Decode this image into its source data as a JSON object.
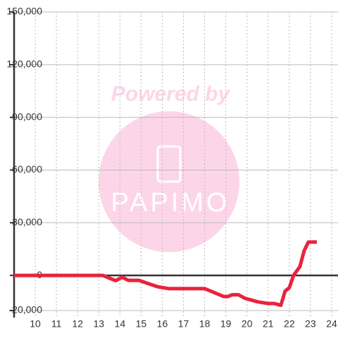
{
  "chart_data": {
    "type": "line",
    "watermark": {
      "line1": "Powered by",
      "line2": "PAPIMO"
    },
    "x": [
      9,
      13.2,
      13.5,
      13.8,
      14.1,
      14.4,
      14.9,
      15.3,
      15.8,
      16.3,
      17,
      18,
      18.4,
      18.9,
      19.1,
      19.3,
      19.6,
      19.9,
      20.5,
      21,
      21.3,
      21.6,
      21.8,
      22,
      22.2,
      22.5,
      22.7,
      22.9,
      23.3
    ],
    "series": [
      {
        "color": "#e8233f",
        "values": [
          0,
          0,
          -1500,
          -3000,
          -1000,
          -2800,
          -2800,
          -4500,
          -6500,
          -7500,
          -7500,
          -7500,
          -9500,
          -12000,
          -12000,
          -11000,
          -11000,
          -13000,
          -15000,
          -16000,
          -16000,
          -17000,
          -9000,
          -7000,
          0,
          5000,
          14000,
          19000,
          19000
        ]
      }
    ],
    "xlim": [
      9,
      24.3
    ],
    "xticks": [
      10,
      11,
      12,
      13,
      14,
      15,
      16,
      17,
      18,
      19,
      20,
      21,
      22,
      23,
      24
    ],
    "ylim": [
      -24000,
      150000
    ],
    "yticks": [
      {
        "value": -20000,
        "label": "-20,000"
      },
      0,
      {
        "value": 30000,
        "label": "30,000"
      },
      {
        "value": 60000,
        "label": "60,000"
      },
      {
        "value": 90000,
        "label": "90,000"
      },
      {
        "value": 120000,
        "label": "120,000"
      },
      {
        "value": 150000,
        "label": "150,000"
      }
    ],
    "grid": true
  }
}
